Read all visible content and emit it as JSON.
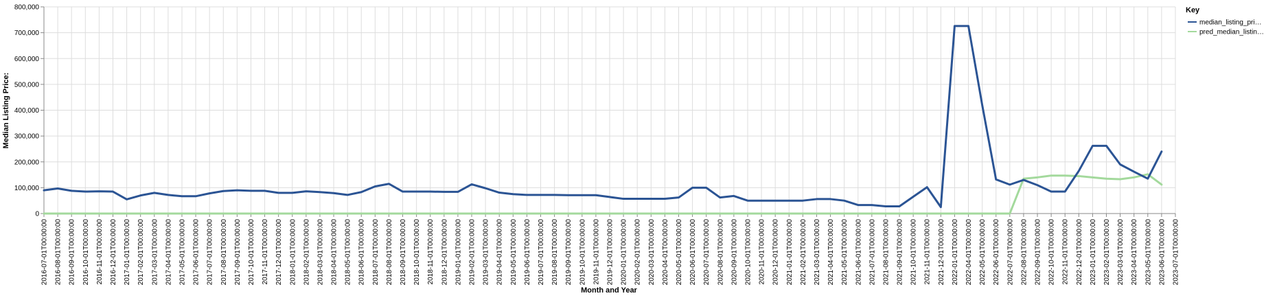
{
  "chart_data": {
    "type": "line",
    "xlabel": "Month and Year",
    "ylabel": "Median Listing Price:",
    "ylim": [
      0,
      800000
    ],
    "y_ticks": [
      "0",
      "100,000",
      "200,000",
      "300,000",
      "400,000",
      "500,000",
      "600,000",
      "700,000",
      "800,000"
    ],
    "grid": true,
    "legend": {
      "title": "Key",
      "placement": "top-right",
      "entries": [
        "median_listing_pri…",
        "pred_median_listin…"
      ]
    },
    "x": [
      "2016-07-01T00:00:00",
      "2016-08-01T00:00:00",
      "2016-09-01T00:00:00",
      "2016-10-01T00:00:00",
      "2016-11-01T00:00:00",
      "2016-12-01T00:00:00",
      "2017-01-01T00:00:00",
      "2017-02-01T00:00:00",
      "2017-03-01T00:00:00",
      "2017-04-01T00:00:00",
      "2017-05-01T00:00:00",
      "2017-06-01T00:00:00",
      "2017-07-01T00:00:00",
      "2017-08-01T00:00:00",
      "2017-09-01T00:00:00",
      "2017-10-01T00:00:00",
      "2017-11-01T00:00:00",
      "2017-12-01T00:00:00",
      "2018-01-01T00:00:00",
      "2018-02-01T00:00:00",
      "2018-03-01T00:00:00",
      "2018-04-01T00:00:00",
      "2018-05-01T00:00:00",
      "2018-06-01T00:00:00",
      "2018-07-01T00:00:00",
      "2018-08-01T00:00:00",
      "2018-09-01T00:00:00",
      "2018-10-01T00:00:00",
      "2018-11-01T00:00:00",
      "2018-12-01T00:00:00",
      "2019-01-01T00:00:00",
      "2019-02-01T00:00:00",
      "2019-03-01T00:00:00",
      "2019-04-01T00:00:00",
      "2019-05-01T00:00:00",
      "2019-06-01T00:00:00",
      "2019-07-01T00:00:00",
      "2019-08-01T00:00:00",
      "2019-09-01T00:00:00",
      "2019-10-01T00:00:00",
      "2019-11-01T00:00:00",
      "2019-12-01T00:00:00",
      "2020-01-01T00:00:00",
      "2020-02-01T00:00:00",
      "2020-03-01T00:00:00",
      "2020-04-01T00:00:00",
      "2020-05-01T00:00:00",
      "2020-06-01T00:00:00",
      "2020-07-01T00:00:00",
      "2020-08-01T00:00:00",
      "2020-09-01T00:00:00",
      "2020-10-01T00:00:00",
      "2020-11-01T00:00:00",
      "2020-12-01T00:00:00",
      "2021-01-01T00:00:00",
      "2021-02-01T00:00:00",
      "2021-03-01T00:00:00",
      "2021-04-01T00:00:00",
      "2021-05-01T00:00:00",
      "2021-06-01T00:00:00",
      "2021-07-01T00:00:00",
      "2021-08-01T00:00:00",
      "2021-09-01T00:00:00",
      "2021-10-01T00:00:00",
      "2021-11-01T00:00:00",
      "2021-12-01T00:00:00",
      "2022-01-01T00:00:00",
      "2022-04-01T00:00:00",
      "2022-05-01T00:00:00",
      "2022-06-01T00:00:00",
      "2022-07-01T00:00:00",
      "2022-08-01T00:00:00",
      "2022-09-01T00:00:00",
      "2022-10-01T00:00:00",
      "2022-11-01T00:00:00",
      "2022-12-01T00:00:00",
      "2023-01-01T00:00:00",
      "2023-02-01T00:00:00",
      "2023-03-01T00:00:00",
      "2023-04-01T00:00:00",
      "2023-05-01T00:00:00",
      "2023-06-01T00:00:00",
      "2023-07-01T00:00:00"
    ],
    "series": [
      {
        "name": "median_listing_pri…",
        "color": "#2b5494",
        "values": [
          90000,
          97000,
          88000,
          85000,
          86000,
          85000,
          55000,
          70000,
          80000,
          72000,
          67000,
          67000,
          78000,
          87000,
          90000,
          88000,
          88000,
          80000,
          80000,
          86000,
          83000,
          79000,
          72000,
          83000,
          105000,
          115000,
          85000,
          85000,
          85000,
          84000,
          84000,
          113000,
          98000,
          81000,
          75000,
          72000,
          72000,
          72000,
          71000,
          71000,
          71000,
          64000,
          57000,
          57000,
          57000,
          57000,
          62000,
          100000,
          100000,
          62000,
          68000,
          50000,
          50000,
          50000,
          50000,
          50000,
          56000,
          56000,
          50000,
          33000,
          33000,
          28000,
          28000,
          65000,
          102000,
          25000,
          726000,
          726000,
          420000,
          132000,
          112000,
          130000,
          110000,
          85000,
          85000,
          165000,
          262000,
          262000,
          190000,
          162000,
          135000,
          240000,
          null
        ]
      },
      {
        "name": "pred_median_listin…",
        "color": "#a3d99c",
        "values": [
          0,
          0,
          0,
          0,
          0,
          0,
          0,
          0,
          0,
          0,
          0,
          0,
          0,
          0,
          0,
          0,
          0,
          0,
          0,
          0,
          0,
          0,
          0,
          0,
          0,
          0,
          0,
          0,
          0,
          0,
          0,
          0,
          0,
          0,
          0,
          0,
          0,
          0,
          0,
          0,
          0,
          0,
          0,
          0,
          0,
          0,
          0,
          0,
          0,
          0,
          0,
          0,
          0,
          0,
          0,
          0,
          0,
          0,
          0,
          0,
          0,
          0,
          0,
          0,
          0,
          0,
          0,
          0,
          0,
          0,
          0,
          135000,
          140000,
          147000,
          147000,
          145000,
          140000,
          135000,
          133000,
          140000,
          152000,
          112000,
          null
        ]
      }
    ]
  }
}
